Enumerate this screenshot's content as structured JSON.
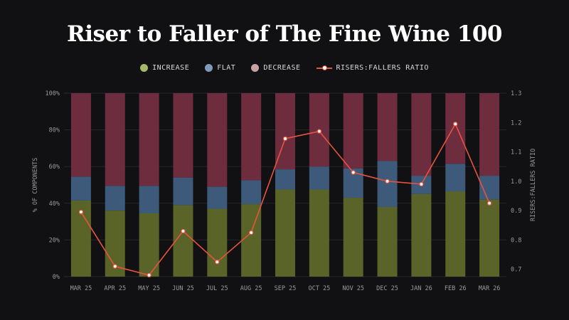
{
  "chart_data": {
    "type": "bar",
    "title": "Riser to Faller of The Fine Wine 100",
    "ylabel": "% OF COMPONENTS",
    "y2label": "RISERS:FALLERS RATIO",
    "ylim": [
      0,
      100
    ],
    "y2lim": [
      0.675,
      1.3
    ],
    "yticks": [
      "0%",
      "20%",
      "40%",
      "60%",
      "80%",
      "100%"
    ],
    "y2ticks": [
      "0.7",
      "0.8",
      "0.9",
      "1.0",
      "1.1",
      "1.2",
      "1.3"
    ],
    "categories": [
      "MAR 25",
      "APR 25",
      "MAY 25",
      "JUN 25",
      "JUL 25",
      "AUG 25",
      "SEP 25",
      "OCT 25",
      "NOV 25",
      "DEC 25",
      "JAN 26",
      "FEB 26",
      "MAR 26"
    ],
    "series": [
      {
        "name": "INCREASE",
        "color": "#5a6428",
        "values": [
          41.5,
          36,
          34.5,
          39,
          37,
          39.5,
          47.5,
          47.5,
          43,
          38,
          45,
          46.5,
          42
        ]
      },
      {
        "name": "FLAT",
        "color": "#3d5a7a",
        "values": [
          13,
          13.5,
          15,
          15,
          12,
          13,
          11,
          12.5,
          16,
          25,
          10,
          15,
          13
        ]
      },
      {
        "name": "DECREASE",
        "color": "#6e2c3f",
        "values": [
          45.5,
          50.5,
          50.5,
          46,
          51,
          47.5,
          41.5,
          40,
          41,
          37,
          45,
          38.5,
          45
        ]
      },
      {
        "name": "RISERS:FALLERS RATIO",
        "type": "line",
        "color": "#e8533f",
        "values": [
          0.895,
          0.71,
          0.68,
          0.83,
          0.725,
          0.825,
          1.145,
          1.17,
          1.03,
          1.0,
          0.99,
          1.195,
          0.925
        ]
      }
    ],
    "legend": "top-center",
    "grid": true
  },
  "legend": {
    "increase": "INCREASE",
    "flat": "FLAT",
    "decrease": "DECREASE",
    "ratio": "RISERS:FALLERS RATIO"
  }
}
